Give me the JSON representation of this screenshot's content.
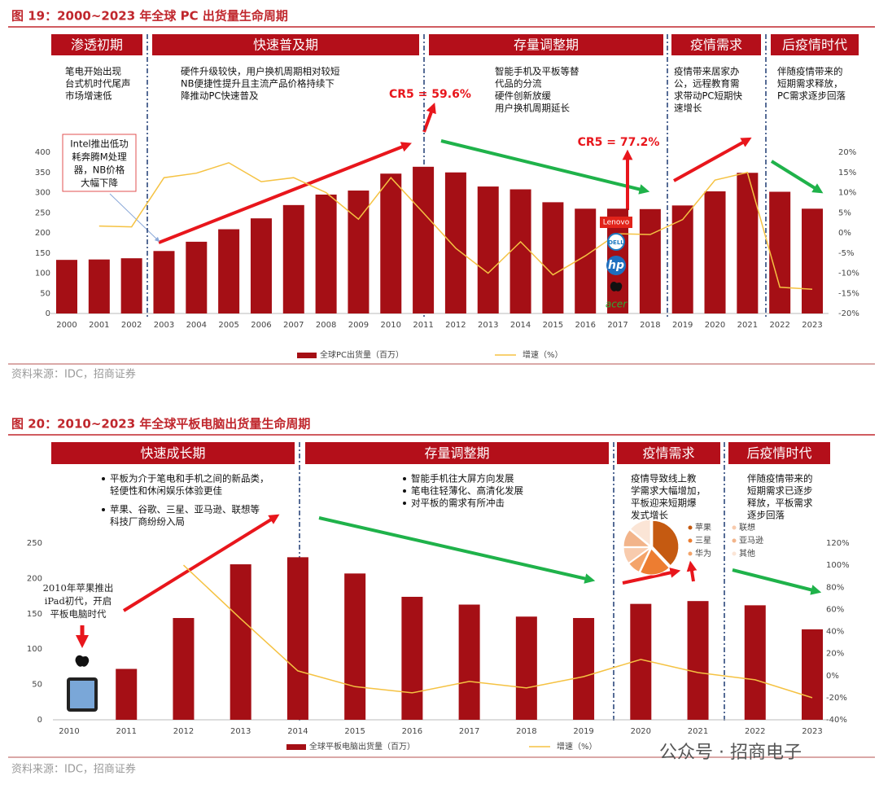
{
  "chart_data": [
    {
      "type": "bar",
      "title": "图 19：2000~2023 年全球 PC 出货量生命周期",
      "categories": [
        "2000",
        "2001",
        "2002",
        "2003",
        "2004",
        "2005",
        "2006",
        "2007",
        "2008",
        "2009",
        "2010",
        "2011",
        "2012",
        "2013",
        "2014",
        "2015",
        "2016",
        "2017",
        "2018",
        "2019",
        "2020",
        "2021",
        "2022",
        "2023"
      ],
      "series": [
        {
          "name": "全球PC出货量（百万）",
          "type": "bar",
          "color": "#a50f15",
          "values": [
            133,
            134,
            137,
            155,
            178,
            209,
            236,
            269,
            295,
            305,
            347,
            364,
            350,
            315,
            308,
            276,
            260,
            260,
            259,
            268,
            303,
            349,
            302,
            260
          ]
        },
        {
          "name": "增速（%）",
          "type": "line",
          "axis": "y2",
          "color": "#f5c242",
          "values": [
            null,
            1.7,
            1.5,
            13.7,
            14.8,
            17.4,
            12.7,
            13.7,
            10,
            3.4,
            13.7,
            5,
            -3.8,
            -10,
            -2.2,
            -10.4,
            -5.7,
            -0.2,
            -0.4,
            3.3,
            13.1,
            15,
            -13.5,
            -14
          ]
        }
      ],
      "ylim": [
        0,
        400
      ],
      "yticks": [
        0,
        50,
        100,
        150,
        200,
        250,
        300,
        350,
        400
      ],
      "y2lim": [
        -20,
        20
      ],
      "y2ticks": [
        {
          "value": -20,
          "label": "-20%"
        },
        {
          "value": -15,
          "label": "-15%"
        },
        {
          "value": -10,
          "label": "-10%"
        },
        {
          "value": -5,
          "label": "-5%"
        },
        {
          "value": 0,
          "label": "0%"
        },
        {
          "value": 5,
          "label": "5%"
        },
        {
          "value": 10,
          "label": "10%"
        },
        {
          "value": 15,
          "label": "15%"
        },
        {
          "value": 20,
          "label": "20%"
        }
      ],
      "phases": [
        {
          "label": "渗透初期",
          "notes": [
            [
              "笔电开始出现",
              "台式机时代尾声",
              "市场增速低"
            ]
          ]
        },
        {
          "label": "快速普及期",
          "notes": [
            [
              "硬件升级较快，用户换机周期相对较短",
              "NB便捷性提升且主流产品价格持续下",
              "降推动PC快速普及"
            ]
          ]
        },
        {
          "label": "存量调整期",
          "notes": [
            [
              "智能手机及平板等替",
              "代品的分流",
              "硬件创新放缓",
              "用户换机周期延长"
            ]
          ]
        },
        {
          "label": "疫情需求",
          "notes": [
            [
              "疫情带来居家办",
              "公，远程教育需",
              "求带动PC短期快",
              "速增长"
            ]
          ]
        },
        {
          "label": "后疫情时代",
          "notes": [
            [
              "伴随疫情带来的",
              "短期需求释放，",
              "PC需求逐步回落"
            ]
          ]
        }
      ],
      "annotations": [
        [
          "Intel推出低功",
          "耗奔腾M处理",
          "器，NB价格",
          "大幅下降"
        ],
        "CR5 = 59.6%",
        "CR5 = 77.2%"
      ],
      "logos": [
        "Lenovo",
        "DELL",
        "hp",
        "acer"
      ],
      "source": "资料来源：IDC，招商证券"
    },
    {
      "type": "bar",
      "title": "图 20：2010~2023 年全球平板电脑出货量生命周期",
      "categories": [
        "2010",
        "2011",
        "2012",
        "2013",
        "2014",
        "2015",
        "2016",
        "2017",
        "2018",
        "2019",
        "2020",
        "2021",
        "2022",
        "2023"
      ],
      "series": [
        {
          "name": "全球平板电脑出货量（百万）",
          "type": "bar",
          "color": "#a50f15",
          "values": [
            null,
            72,
            144,
            220,
            230,
            207,
            174,
            163,
            146,
            144,
            164,
            168,
            162,
            128
          ]
        },
        {
          "name": "增速（%）",
          "type": "line",
          "axis": "y2",
          "color": "#f5c242",
          "values": [
            null,
            null,
            100,
            51.5,
            4.3,
            -10,
            -15.6,
            -5.3,
            -11.2,
            -0.9,
            14.6,
            2.8,
            -3.8,
            -20
          ]
        }
      ],
      "ylim": [
        0,
        250
      ],
      "yticks": [
        0,
        50,
        100,
        150,
        200,
        250
      ],
      "y2lim": [
        -40,
        120
      ],
      "y2ticks": [
        {
          "value": -40,
          "label": "-40%"
        },
        {
          "value": -20,
          "label": "-20%"
        },
        {
          "value": 0,
          "label": "0%"
        },
        {
          "value": 20,
          "label": "20%"
        },
        {
          "value": 40,
          "label": "40%"
        },
        {
          "value": 60,
          "label": "60%"
        },
        {
          "value": 80,
          "label": "80%"
        },
        {
          "value": 100,
          "label": "100%"
        },
        {
          "value": 120,
          "label": "120%"
        }
      ],
      "phases": [
        {
          "label": "快速成长期",
          "bullet": true,
          "notes": [
            [
              "平板为介于笔电和手机之间的新品类，",
              "轻便性和休闲娱乐体验更佳"
            ],
            [
              "苹果、谷歌、三星、亚马逊、联想等",
              "科技厂商纷纷入局"
            ]
          ]
        },
        {
          "label": "存量调整期",
          "bullet": true,
          "notes": [
            [
              "智能手机往大屏方向发展"
            ],
            [
              "笔电往轻薄化、高清化发展"
            ],
            [
              "对平板的需求有所冲击"
            ]
          ]
        },
        {
          "label": "疫情需求",
          "notes": [
            [
              "疫情导致线上教",
              "学需求大幅增加，",
              "平板迎来短期爆",
              "发式增长"
            ]
          ]
        },
        {
          "label": "后疫情时代",
          "notes": [
            [
              "伴随疫情带来的",
              "短期需求已逐步",
              "释放，平板需求",
              "逐步回落"
            ]
          ]
        }
      ],
      "annotations": [
        [
          "2010年苹果推出",
          "iPad初代，开启",
          "平板电脑时代"
        ]
      ],
      "source": "资料来源：IDC，招商证券"
    },
    {
      "type": "pie",
      "categories": [
        "苹果",
        "三星",
        "华为",
        "联想",
        "亚马逊",
        "其他"
      ],
      "values": [
        38,
        19,
        8,
        10,
        11,
        14
      ],
      "colors": [
        "#c55a11",
        "#ed7d31",
        "#f4a46a",
        "#f8cbad",
        "#f2b48a",
        "#fbe5d6"
      ]
    }
  ],
  "watermark": "公众号 · 招商电子"
}
